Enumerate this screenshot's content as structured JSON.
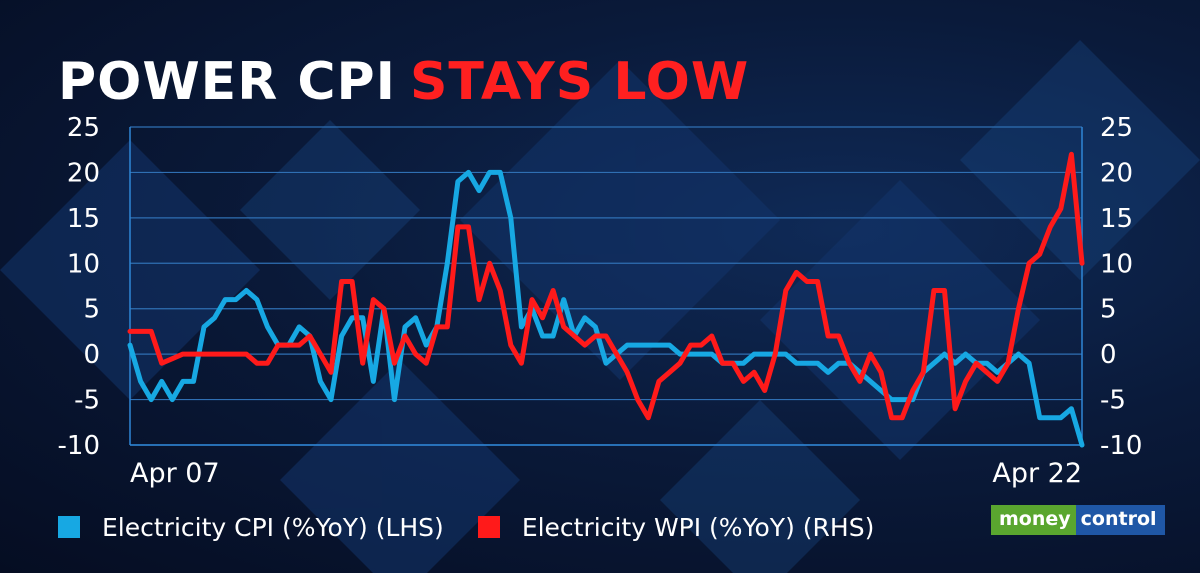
{
  "title": {
    "part1": "POWER CPI",
    "part2": "STAYS LOW",
    "part1_color": "#ffffff",
    "part2_color": "#ff2020"
  },
  "brand": {
    "part1": "money",
    "part2": "control",
    "part1_color": "#5aa62f",
    "part2_color": "#1f57a6"
  },
  "chart_data": {
    "type": "line",
    "title": "POWER CPI STAYS LOW",
    "x_tick_labels": [
      "Apr 07",
      "Apr 22"
    ],
    "left_axis": {
      "ticks": [
        25,
        20,
        15,
        10,
        5,
        0,
        -5,
        -10
      ],
      "range": [
        -10,
        25
      ]
    },
    "right_axis": {
      "ticks": [
        25,
        20,
        15,
        10,
        5,
        0,
        -5,
        -10
      ],
      "range": [
        -10,
        25
      ]
    },
    "grid": true,
    "legend_position": "bottom",
    "series": [
      {
        "name": "Electricity CPI (%YoY) (LHS)",
        "axis": "left",
        "color": "#17a8e3",
        "values": [
          1,
          -3,
          -5,
          -3,
          -5,
          -3,
          -3,
          3,
          4,
          6,
          6,
          7,
          6,
          3,
          1,
          1,
          3,
          2,
          -3,
          -5,
          2,
          4,
          4,
          -3,
          5,
          -5,
          3,
          4,
          1,
          3,
          10,
          19,
          20,
          18,
          20,
          20,
          15,
          3,
          5,
          2,
          2,
          6,
          2,
          4,
          3,
          -1,
          0,
          1,
          1,
          1,
          1,
          1,
          0,
          0,
          0,
          0,
          -1,
          -1,
          -1,
          0,
          0,
          0,
          0,
          -1,
          -1,
          -1,
          -2,
          -1,
          -1,
          -2,
          -3,
          -4,
          -5,
          -5,
          -5,
          -2,
          -1,
          0,
          -1,
          0,
          -1,
          -1,
          -2,
          -1,
          0,
          -1,
          -7,
          -7,
          -7,
          -6,
          -10
        ]
      },
      {
        "name": "Electricity WPI (%YoY) (RHS)",
        "axis": "right",
        "color": "#ff1a1a",
        "values": [
          2.5,
          2.5,
          2.5,
          -1,
          -0.5,
          0,
          0,
          0,
          0,
          0,
          0,
          0,
          -1,
          -1,
          1,
          1,
          1,
          2,
          0,
          -2,
          8,
          8,
          -1,
          6,
          5,
          -1,
          2,
          0,
          -1,
          3,
          3,
          14,
          14,
          6,
          10,
          7,
          1,
          -1,
          6,
          4,
          7,
          3,
          2,
          1,
          2,
          2,
          0,
          -2,
          -5,
          -7,
          -3,
          -2,
          -1,
          1,
          1,
          2,
          -1,
          -1,
          -3,
          -2,
          -4,
          0,
          7,
          9,
          8,
          8,
          2,
          2,
          -1,
          -3,
          0,
          -2,
          -7,
          -7,
          -4,
          -2,
          7,
          7,
          -6,
          -3,
          -1,
          -2,
          -3,
          -1,
          5,
          10,
          11,
          14,
          16,
          22,
          10
        ]
      }
    ]
  }
}
